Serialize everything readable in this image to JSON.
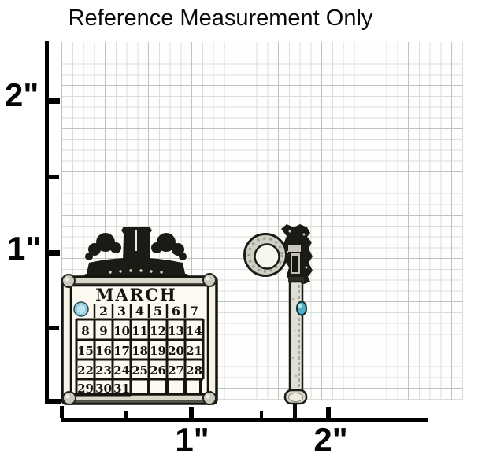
{
  "title": "Reference Measurement Only",
  "rulers": {
    "unit": "inches",
    "left": {
      "labels": [
        {
          "text": "2\"",
          "inch": 2
        },
        {
          "text": "1\"",
          "inch": 1
        }
      ]
    },
    "bottom": {
      "labels": [
        {
          "text": "1\"",
          "inch": 1
        },
        {
          "text": "2\"",
          "inch": 2
        }
      ]
    }
  },
  "charm_front": {
    "month": "MARCH",
    "first_cell": "gem",
    "calendar_rows": [
      [
        "",
        "2",
        "3",
        "4",
        "5",
        "6",
        "7"
      ],
      [
        "8",
        "9",
        "10",
        "11",
        "12",
        "13",
        "14"
      ],
      [
        "15",
        "16",
        "17",
        "18",
        "19",
        "20",
        "21"
      ],
      [
        "22",
        "23",
        "24",
        "25",
        "26",
        "27",
        "28"
      ],
      [
        "29",
        "30",
        "31",
        "",
        "",
        "",
        ""
      ]
    ],
    "gem_color": "#8fd0e0"
  },
  "charm_side": {
    "gem_color": "#4fb0c6"
  },
  "colors": {
    "outline": "#1c1c16",
    "metal_light": "#e0dfd6",
    "metal_mid": "#cfcfc5",
    "paper_cream": "#f6f3e6",
    "crown_black": "#1b1b15",
    "grid_minor": "#dadeda",
    "grid_major": "#bcc4c2",
    "axis": "#000000"
  }
}
